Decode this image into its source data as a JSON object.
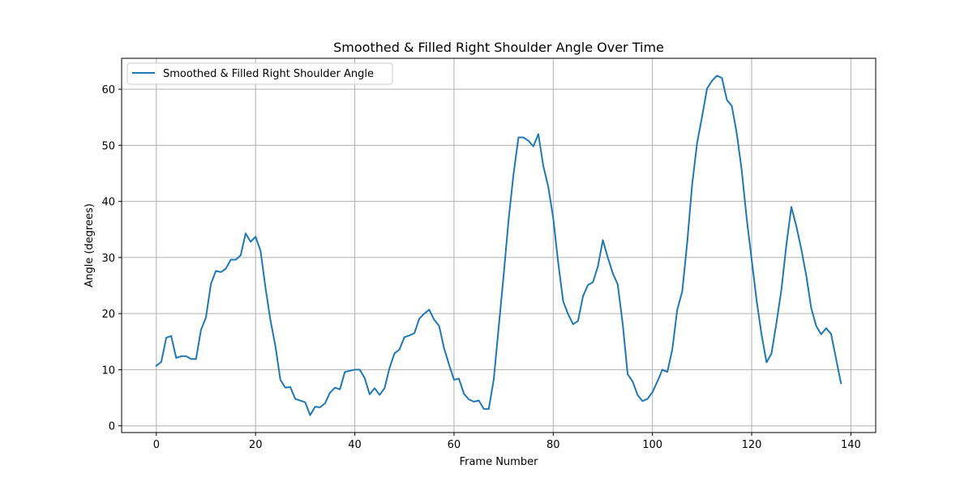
{
  "chart_data": {
    "type": "line",
    "title": "Smoothed & Filled Right Shoulder Angle Over Time",
    "xlabel": "Frame Number",
    "ylabel": "Angle (degrees)",
    "xlim": [
      -7,
      145
    ],
    "ylim": [
      -1.2,
      65.5
    ],
    "xticks": [
      0,
      20,
      40,
      60,
      80,
      100,
      120,
      140
    ],
    "yticks": [
      0,
      10,
      20,
      30,
      40,
      50,
      60
    ],
    "grid": true,
    "legend_position": "top-left",
    "colors": {
      "series": "#1f77b4",
      "grid": "#b0b0b0",
      "axes": "#000000"
    },
    "series": [
      {
        "name": "Smoothed & Filled Right Shoulder Angle",
        "x": [
          0,
          1,
          2,
          3,
          4,
          5,
          6,
          7,
          8,
          9,
          10,
          11,
          12,
          13,
          14,
          15,
          16,
          17,
          18,
          19,
          20,
          21,
          22,
          23,
          24,
          25,
          26,
          27,
          28,
          29,
          30,
          31,
          32,
          33,
          34,
          35,
          36,
          37,
          38,
          39,
          40,
          41,
          42,
          43,
          44,
          45,
          46,
          47,
          48,
          49,
          50,
          51,
          52,
          53,
          54,
          55,
          56,
          57,
          58,
          59,
          60,
          61,
          62,
          63,
          64,
          65,
          66,
          67,
          68,
          69,
          70,
          71,
          72,
          73,
          74,
          75,
          76,
          77,
          78,
          79,
          80,
          81,
          82,
          83,
          84,
          85,
          86,
          87,
          88,
          89,
          90,
          91,
          92,
          93,
          94,
          95,
          96,
          97,
          98,
          99,
          100,
          101,
          102,
          103,
          104,
          105,
          106,
          107,
          108,
          109,
          110,
          111,
          112,
          113,
          114,
          115,
          116,
          117,
          118,
          119,
          120,
          121,
          122,
          123,
          124,
          125,
          126,
          127,
          128,
          129,
          130,
          131,
          132,
          133,
          134,
          135,
          136,
          137,
          138
        ],
        "values": [
          10.7,
          11.4,
          15.7,
          16.0,
          12.1,
          12.4,
          12.4,
          11.9,
          11.9,
          17.1,
          19.3,
          25.3,
          27.6,
          27.4,
          28.0,
          29.6,
          29.6,
          30.4,
          34.3,
          32.8,
          33.7,
          31.2,
          24.6,
          18.8,
          14.2,
          8.2,
          6.8,
          6.9,
          4.8,
          4.5,
          4.2,
          1.9,
          3.4,
          3.3,
          4.0,
          5.9,
          6.8,
          6.5,
          9.6,
          9.8,
          10.0,
          10.0,
          8.5,
          5.6,
          6.7,
          5.5,
          6.7,
          10.3,
          12.9,
          13.6,
          15.8,
          16.1,
          16.5,
          19.1,
          20.0,
          20.7,
          18.9,
          17.8,
          13.8,
          10.9,
          8.2,
          8.4,
          5.7,
          4.7,
          4.3,
          4.5,
          3.0,
          3.0,
          8.2,
          17.5,
          26.8,
          36.7,
          44.9,
          51.4,
          51.4,
          50.8,
          49.8,
          52.0,
          46.3,
          42.6,
          37.0,
          29.1,
          22.2,
          19.9,
          18.1,
          18.7,
          23.1,
          25.1,
          25.6,
          28.4,
          33.1,
          30.0,
          27.2,
          25.2,
          18.2,
          9.2,
          7.9,
          5.5,
          4.4,
          4.8,
          6.0,
          7.9,
          10.0,
          9.6,
          13.6,
          20.7,
          23.9,
          32.6,
          43.0,
          50.4,
          55.1,
          60.1,
          61.5,
          62.4,
          62.0,
          58.1,
          57.0,
          52.1,
          45.5,
          36.9,
          29.6,
          22.3,
          16.2,
          11.3,
          12.9,
          18.4,
          24.3,
          32.3,
          39.0,
          35.6,
          31.5,
          26.8,
          21.0,
          17.8,
          16.3,
          17.4,
          16.4,
          12.0,
          7.6
        ]
      }
    ]
  }
}
